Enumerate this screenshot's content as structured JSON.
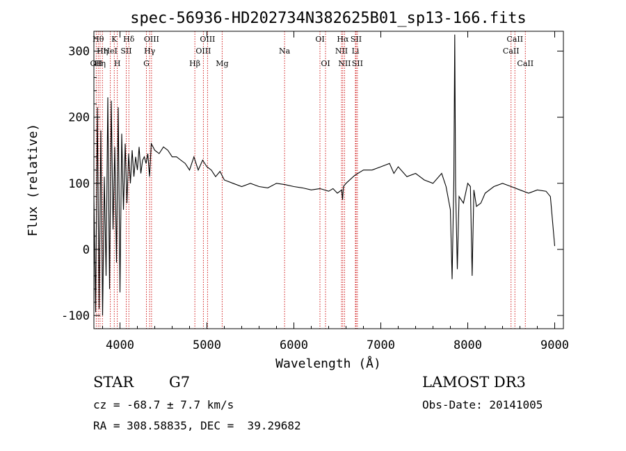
{
  "chart_data": {
    "type": "line",
    "title": "spec-56936-HD202734N382625B01_sp13-166.fits",
    "xlabel": "Wavelength (Å)",
    "ylabel": "Flux (relative)",
    "xlim": [
      3700,
      9100
    ],
    "ylim": [
      -120,
      330
    ],
    "xticks": [
      4000,
      5000,
      6000,
      7000,
      8000,
      9000
    ],
    "yticks": [
      -100,
      0,
      100,
      200,
      300
    ],
    "series": [
      {
        "name": "flux",
        "x": [
          3700,
          3720,
          3740,
          3760,
          3780,
          3800,
          3820,
          3840,
          3860,
          3880,
          3900,
          3920,
          3940,
          3960,
          3980,
          4000,
          4020,
          4040,
          4060,
          4080,
          4100,
          4120,
          4140,
          4160,
          4180,
          4200,
          4220,
          4240,
          4260,
          4280,
          4300,
          4320,
          4340,
          4360,
          4380,
          4400,
          4450,
          4500,
          4550,
          4600,
          4650,
          4700,
          4750,
          4800,
          4850,
          4900,
          4950,
          5000,
          5050,
          5100,
          5150,
          5200,
          5300,
          5400,
          5500,
          5600,
          5700,
          5800,
          5900,
          6000,
          6100,
          6200,
          6300,
          6400,
          6450,
          6500,
          6550,
          6560,
          6570,
          6600,
          6700,
          6800,
          6900,
          7000,
          7100,
          7150,
          7200,
          7300,
          7400,
          7500,
          7600,
          7700,
          7750,
          7800,
          7820,
          7840,
          7850,
          7860,
          7880,
          7900,
          7950,
          8000,
          8030,
          8050,
          8070,
          8100,
          8150,
          8200,
          8300,
          8400,
          8500,
          8600,
          8700,
          8800,
          8900,
          8950,
          9000
        ],
        "y": [
          80,
          -95,
          215,
          -90,
          180,
          -100,
          110,
          -40,
          230,
          -60,
          225,
          30,
          155,
          -20,
          215,
          -65,
          175,
          60,
          160,
          70,
          145,
          100,
          150,
          110,
          140,
          120,
          155,
          115,
          135,
          140,
          130,
          145,
          110,
          160,
          155,
          150,
          145,
          155,
          150,
          140,
          140,
          135,
          130,
          120,
          140,
          120,
          135,
          125,
          120,
          110,
          118,
          105,
          100,
          95,
          100,
          95,
          93,
          100,
          98,
          95,
          93,
          90,
          92,
          88,
          92,
          85,
          90,
          75,
          95,
          100,
          112,
          120,
          120,
          125,
          130,
          115,
          125,
          110,
          115,
          105,
          100,
          115,
          95,
          60,
          -45,
          105,
          325,
          95,
          -30,
          80,
          70,
          100,
          95,
          -40,
          90,
          65,
          70,
          85,
          95,
          100,
          95,
          90,
          85,
          90,
          88,
          80,
          5
        ]
      }
    ],
    "line_markers": [
      {
        "wavelength": 3727,
        "label": "OII",
        "row": 2
      },
      {
        "wavelength": 3750,
        "label": "Hθ",
        "row": 0
      },
      {
        "wavelength": 3771,
        "label": "Hη",
        "row": 2
      },
      {
        "wavelength": 3798,
        "label": "Hη",
        "row": 1
      },
      {
        "wavelength": 3889,
        "label": "HeI",
        "row": 1
      },
      {
        "wavelength": 3934,
        "label": "K",
        "row": 0
      },
      {
        "wavelength": 3969,
        "label": "H",
        "row": 2
      },
      {
        "wavelength": 4072,
        "label": "SII",
        "row": 1
      },
      {
        "wavelength": 4102,
        "label": "Hδ",
        "row": 0
      },
      {
        "wavelength": 4304,
        "label": "G",
        "row": 2
      },
      {
        "wavelength": 4341,
        "label": "Hγ",
        "row": 1
      },
      {
        "wavelength": 4363,
        "label": "OIII",
        "row": 0
      },
      {
        "wavelength": 4861,
        "label": "Hβ",
        "row": 2
      },
      {
        "wavelength": 4959,
        "label": "OIII",
        "row": 1
      },
      {
        "wavelength": 5007,
        "label": "OIII",
        "row": 0
      },
      {
        "wavelength": 5175,
        "label": "Mg",
        "row": 2
      },
      {
        "wavelength": 5893,
        "label": "Na",
        "row": 1
      },
      {
        "wavelength": 6300,
        "label": "OI",
        "row": 0
      },
      {
        "wavelength": 6364,
        "label": "OI",
        "row": 2
      },
      {
        "wavelength": 6548,
        "label": "NII",
        "row": 1
      },
      {
        "wavelength": 6563,
        "label": "Hα",
        "row": 0
      },
      {
        "wavelength": 6583,
        "label": "NII",
        "row": 2
      },
      {
        "wavelength": 6708,
        "label": "Li",
        "row": 1
      },
      {
        "wavelength": 6716,
        "label": "SII",
        "row": 0
      },
      {
        "wavelength": 6731,
        "label": "SII",
        "row": 2
      },
      {
        "wavelength": 8498,
        "label": "CaII",
        "row": 1
      },
      {
        "wavelength": 8542,
        "label": "CaII",
        "row": 0
      },
      {
        "wavelength": 8662,
        "label": "CaII",
        "row": 2
      }
    ]
  },
  "info": {
    "object_class": "STAR",
    "subclass": "G7",
    "survey": "LAMOST DR3",
    "cz": "cz = -68.7 ± 7.7 km/s",
    "obs_date": "Obs-Date: 20141005",
    "coords": "RA = 308.58835, DEC =  39.29682"
  },
  "colors": {
    "spectrum": "#000000",
    "marker": "#cc0000",
    "axis": "#000000"
  }
}
